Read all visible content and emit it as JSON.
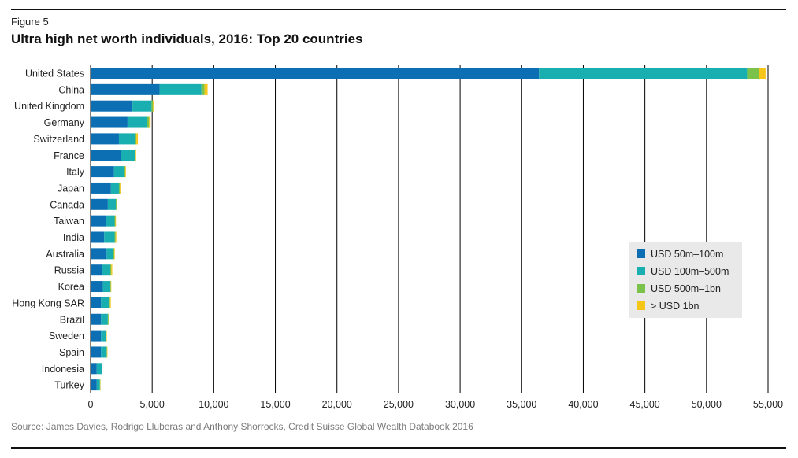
{
  "figure_label": "Figure 5",
  "title": "Ultra high net worth individuals, 2016: Top 20 countries",
  "source": "Source: James Davies, Rodrigo Lluberas and Anthony Shorrocks, Credit Suisse Global Wealth Databook 2016",
  "colors": {
    "s1": "#0c6fb3",
    "s2": "#19aeb0",
    "s3": "#7bc24a",
    "s4": "#f5c518",
    "grid": "#000000"
  },
  "chart_data": {
    "type": "bar",
    "orientation": "horizontal",
    "stacked": true,
    "categories": [
      "United States",
      "China",
      "United Kingdom",
      "Germany",
      "Switzerland",
      "France",
      "Italy",
      "Japan",
      "Canada",
      "Taiwan",
      "India",
      "Australia",
      "Russia",
      "Korea",
      "Hong Kong SAR",
      "Brazil",
      "Sweden",
      "Spain",
      "Indonesia",
      "Turkey"
    ],
    "series": [
      {
        "name": "USD 50m–100m",
        "values": [
          36400,
          5600,
          3400,
          3000,
          2300,
          2450,
          1900,
          1650,
          1400,
          1250,
          1100,
          1300,
          950,
          1000,
          850,
          850,
          850,
          850,
          500,
          500
        ]
      },
      {
        "name": "USD 100m–500m",
        "values": [
          16900,
          3400,
          1550,
          1600,
          1300,
          1150,
          850,
          650,
          650,
          700,
          850,
          550,
          650,
          600,
          650,
          550,
          400,
          450,
          400,
          250
        ]
      },
      {
        "name": "USD 500m–1bn",
        "values": [
          950,
          250,
          120,
          150,
          120,
          60,
          70,
          80,
          60,
          60,
          80,
          70,
          80,
          50,
          80,
          60,
          40,
          40,
          40,
          40
        ]
      },
      {
        "name": "> USD 1bn",
        "values": [
          550,
          250,
          100,
          120,
          120,
          40,
          50,
          50,
          40,
          50,
          60,
          40,
          80,
          30,
          60,
          50,
          30,
          30,
          20,
          20
        ]
      }
    ],
    "xlim": [
      0,
      55000
    ],
    "xticks": [
      0,
      5000,
      10000,
      15000,
      20000,
      25000,
      30000,
      35000,
      40000,
      45000,
      50000,
      55000
    ],
    "xtick_labels": [
      "0",
      "5,000",
      "10,000",
      "15,000",
      "20,000",
      "25,000",
      "30,000",
      "35,000",
      "40,000",
      "45,000",
      "50,000",
      "55,000"
    ],
    "grid": "vertical",
    "legend": "right"
  }
}
